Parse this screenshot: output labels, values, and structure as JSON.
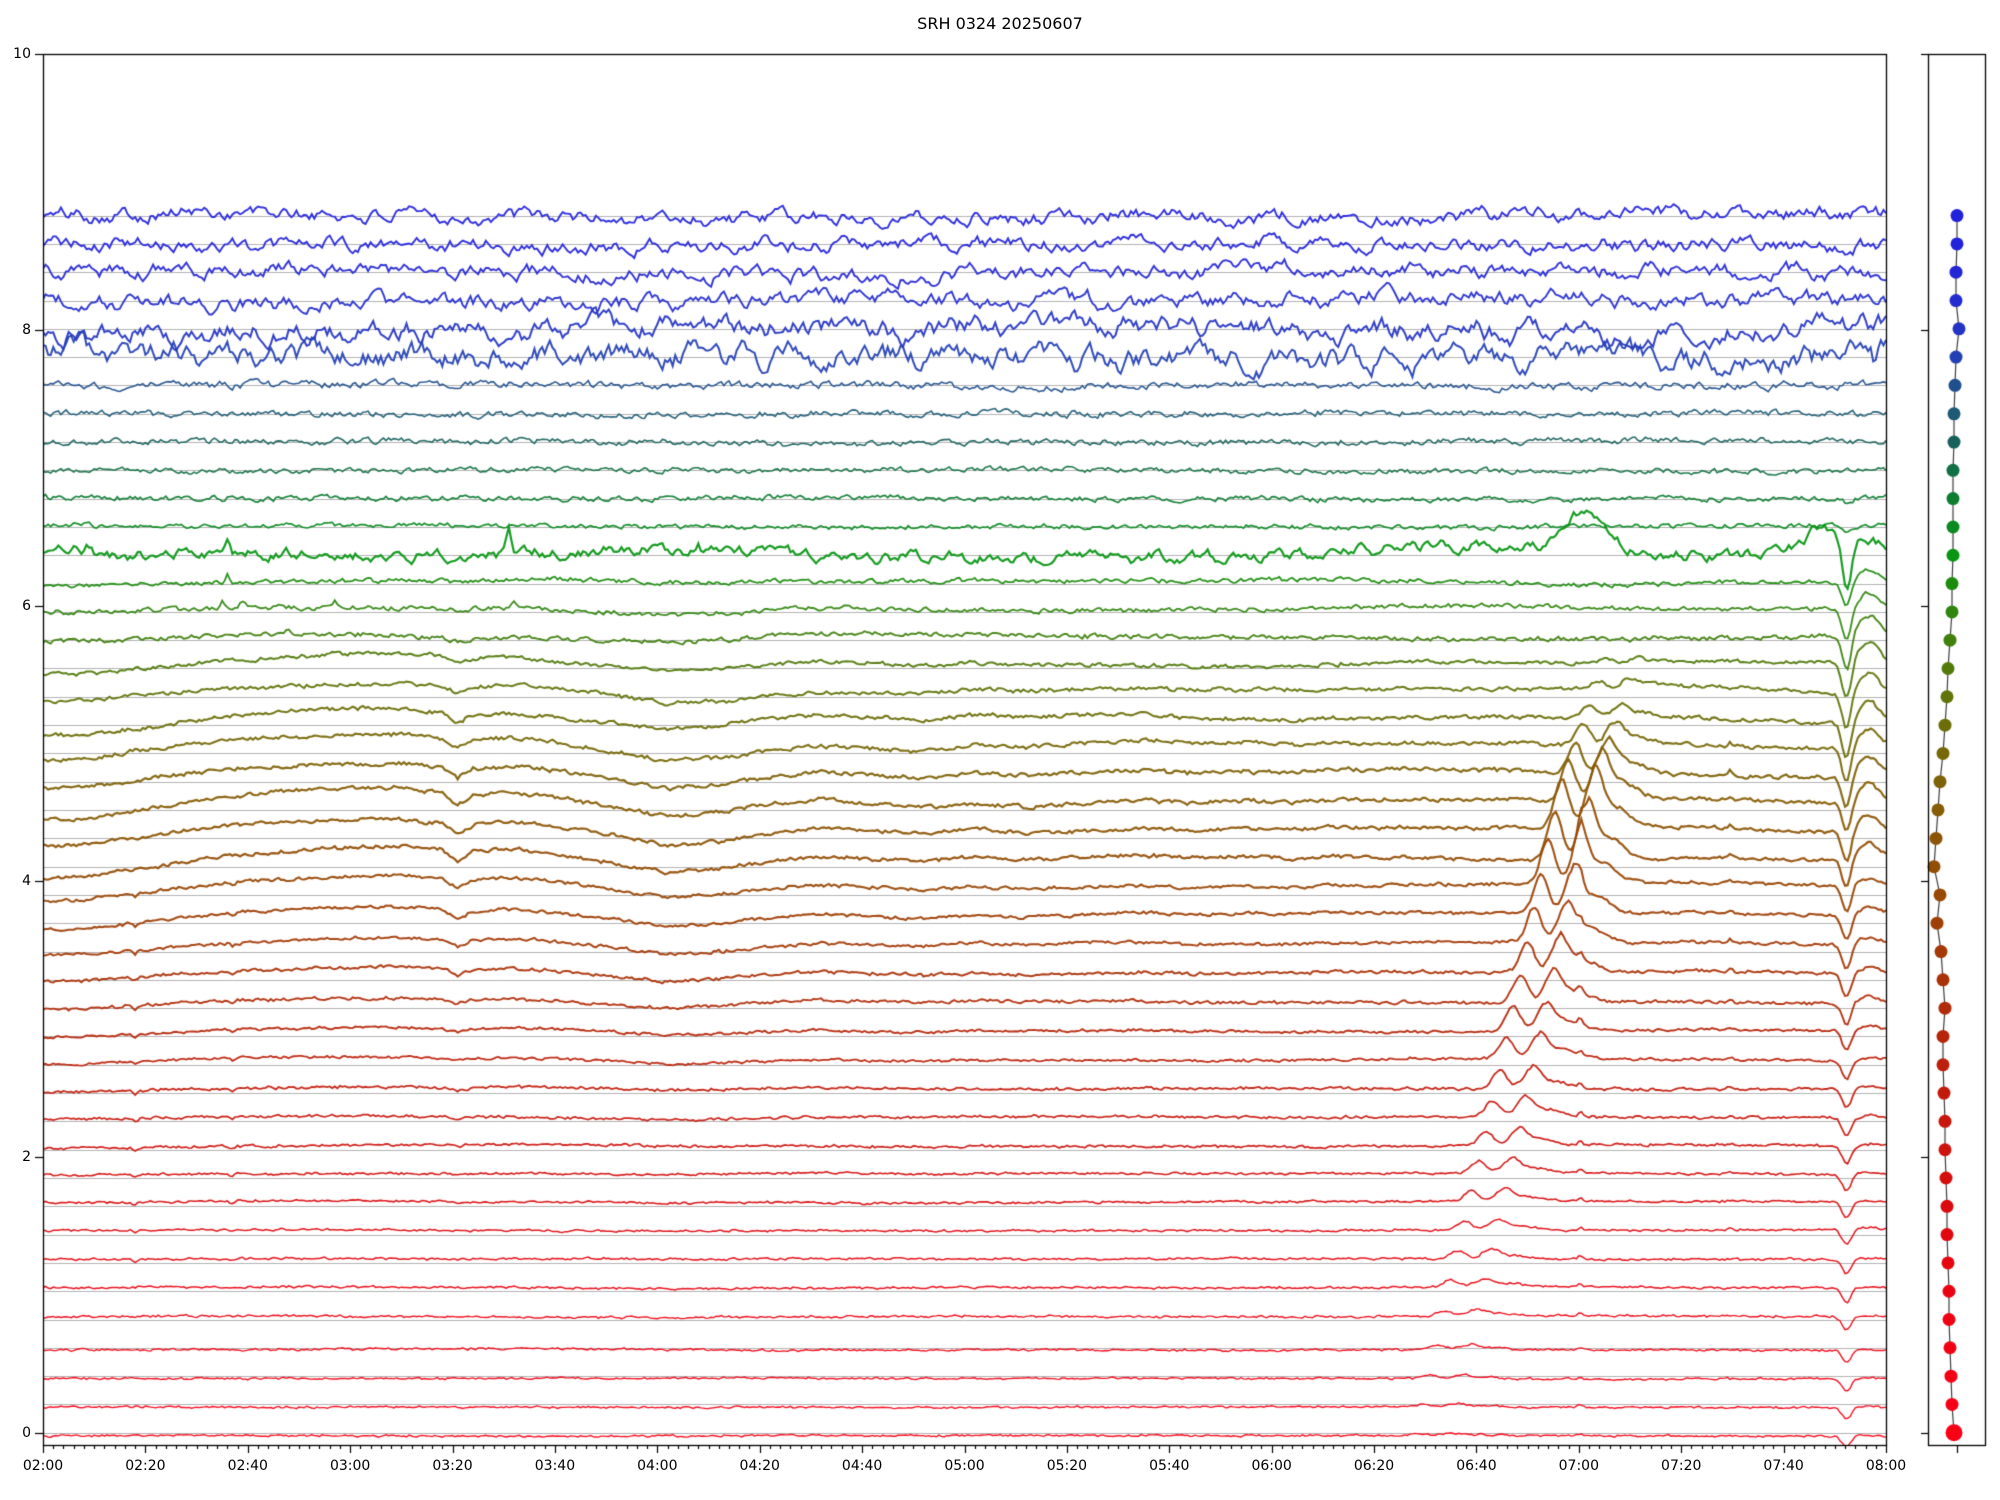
{
  "title": "SRH 0324 20250607",
  "colors": {
    "background": "#ffffff",
    "axis": "#000000",
    "grid": "#b3b3b3",
    "panel_line": "#404040"
  },
  "axes": {
    "x_major_labels": [
      "02:00",
      "02:20",
      "02:40",
      "03:00",
      "03:20",
      "03:40",
      "04:00",
      "04:20",
      "04:40",
      "05:00",
      "05:20",
      "05:40",
      "06:00",
      "06:20",
      "06:40",
      "07:00",
      "07:20",
      "07:40",
      "08:00"
    ],
    "x_major_step_min": 20,
    "x_minor_step_min": 2,
    "y_tick_labels": [
      "0",
      "2",
      "4",
      "6",
      "8",
      "10"
    ],
    "y_tick_values": [
      0,
      2,
      4,
      6,
      8,
      10
    ],
    "x_range_min": [
      0,
      360
    ],
    "y_range": [
      0,
      10
    ]
  },
  "chart_data": {
    "type": "line",
    "n_channels": 44,
    "x_axis": "time UT from 02:00 to 08:00, major ticks every 20 min, minor every 2 min",
    "y_axis": "stacked channel offsets, 0 to 10",
    "baseline_step": 0.2053,
    "baselines": [
      8.828,
      8.623,
      8.418,
      8.212,
      8.007,
      7.802,
      7.597,
      7.391,
      7.186,
      6.981,
      6.776,
      6.57,
      6.365,
      6.16,
      5.954,
      5.749,
      5.544,
      5.339,
      5.133,
      4.928,
      4.723,
      4.518,
      4.312,
      4.107,
      3.902,
      3.697,
      3.491,
      3.286,
      3.081,
      2.876,
      2.67,
      2.465,
      2.26,
      2.054,
      1.849,
      1.644,
      1.439,
      1.233,
      1.028,
      0.823,
      0.618,
      0.412,
      0.207,
      0.002
    ],
    "colors": [
      "#2222dd",
      "#2222db",
      "#2326d4",
      "#232cce",
      "#2334c4",
      "#2240b4",
      "#1f4f8c",
      "#1d5a74",
      "#18615b",
      "#127044",
      "#0d7d31",
      "#0a8a20",
      "#089613",
      "#1d8c0e",
      "#30850e",
      "#41800d",
      "#527a0b",
      "#60740a",
      "#6c6e09",
      "#766808",
      "#7e6207",
      "#865c06",
      "#8c5505",
      "#924e05",
      "#984705",
      "#9e4005",
      "#a43906",
      "#aa3207",
      "#b02b08",
      "#b62509",
      "#bc200a",
      "#c21b0b",
      "#c8160c",
      "#ce120d",
      "#d40e0d",
      "#da0b0e",
      "#e0080f",
      "#e50610",
      "#e90411",
      "#ed0312",
      "#f10213",
      "#f40114",
      "#f70015",
      "#fa0016"
    ],
    "noise_amp": [
      0.032,
      0.032,
      0.034,
      0.036,
      0.052,
      0.06,
      0.016,
      0.013,
      0.012,
      0.011,
      0.011,
      0.009,
      0.026,
      0.009,
      0.009,
      0.009,
      0.008,
      0.008,
      0.008,
      0.008,
      0.008,
      0.008,
      0.007,
      0.007,
      0.007,
      0.006,
      0.006,
      0.006,
      0.006,
      0.005,
      0.005,
      0.005,
      0.005,
      0.005,
      0.004,
      0.004,
      0.004,
      0.004,
      0.004,
      0.004,
      0.004,
      0.0035,
      0.0035,
      0.0035
    ],
    "noise_rho": [
      0.75,
      0.75,
      0.75,
      0.75,
      0.8,
      0.8,
      0.6,
      0.55,
      0.55,
      0.55,
      0.55,
      0.5,
      0.72,
      0.5,
      0.5,
      0.5,
      0.5,
      0.5,
      0.5,
      0.5,
      0.45,
      0.45,
      0.45,
      0.45,
      0.45,
      0.45,
      0.4,
      0.4,
      0.4,
      0.4,
      0.4,
      0.4,
      0.4,
      0.4,
      0.4,
      0.4,
      0.4,
      0.4,
      0.4,
      0.4,
      0.4,
      0.4,
      0.4,
      0.4
    ],
    "slow_amp": [
      0.012,
      0.012,
      0.013,
      0.014,
      0.02,
      0.022,
      0.008,
      0.007,
      0.007,
      0.006,
      0.006,
      0.005,
      0.02,
      0.01,
      0.012,
      0.013,
      0.014,
      0.014,
      0.013,
      0.012,
      0.011,
      0.01,
      0.009,
      0.009,
      0.008,
      0.007,
      0.006,
      0.006,
      0.005,
      0.005,
      0.004,
      0.004,
      0.004,
      0.004,
      0.003,
      0.003,
      0.003,
      0.003,
      0.003,
      0.003,
      0.003,
      0.002,
      0.002,
      0.002
    ],
    "drift_amp": [
      0,
      0,
      0,
      0,
      0,
      0,
      0,
      0,
      0,
      0,
      0,
      0,
      0,
      0.02,
      0.035,
      0.05,
      0.07,
      0.09,
      0.11,
      0.125,
      0.135,
      0.14,
      0.135,
      0.13,
      0.115,
      0.1,
      0.085,
      0.07,
      0.055,
      0.045,
      0.035,
      0.027,
      0.02,
      0.015,
      0.011,
      0.008,
      0.006,
      0.005,
      0.004,
      0.003,
      0.002,
      0.002,
      0.001,
      0.001
    ],
    "drift_shape": [
      [
        0,
        -0.58
      ],
      [
        8,
        -0.5
      ],
      [
        20,
        0
      ],
      [
        35,
        0.58
      ],
      [
        55,
        0.92
      ],
      [
        70,
        1.0
      ],
      [
        78,
        0.75
      ],
      [
        81,
        0.17
      ],
      [
        84,
        0.67
      ],
      [
        92,
        0.83
      ],
      [
        100,
        0.58
      ],
      [
        112,
        0.08
      ],
      [
        122,
        -0.42
      ],
      [
        132,
        -0.17
      ],
      [
        142,
        0.25
      ],
      [
        152,
        0.5
      ],
      [
        162,
        0.33
      ],
      [
        172,
        0.17
      ],
      [
        182,
        0.42
      ],
      [
        192,
        0.25
      ],
      [
        205,
        0.42
      ],
      [
        215,
        0.5
      ],
      [
        225,
        0.33
      ],
      [
        235,
        0.42
      ],
      [
        245,
        0.33
      ],
      [
        252,
        0.5
      ],
      [
        258,
        0.42
      ],
      [
        268,
        0.5
      ],
      [
        278,
        0.42
      ],
      [
        288,
        0.47
      ],
      [
        295,
        0.37
      ],
      [
        302,
        0.33
      ],
      [
        312,
        0.37
      ],
      [
        322,
        0.47
      ],
      [
        332,
        0.42
      ],
      [
        342,
        0.33
      ],
      [
        350,
        0.3
      ],
      [
        356,
        0.37
      ],
      [
        360,
        0.42
      ]
    ],
    "burst": {
      "t_ref_min": 298,
      "ch_ref": 22,
      "time_drift_min_per_ch": 1.35,
      "peak_sep_min": 6.3,
      "sigma1": 2.0,
      "sigma2": 2.3,
      "amp": [
        0,
        0,
        0,
        0,
        0,
        0,
        0,
        0,
        0,
        0,
        0,
        0,
        0,
        0,
        0,
        0,
        0.03,
        0.06,
        0.1,
        0.16,
        0.24,
        0.32,
        0.4,
        0.4,
        0.36,
        0.32,
        0.28,
        0.25,
        0.22,
        0.19,
        0.17,
        0.15,
        0.13,
        0.115,
        0.1,
        0.085,
        0.075,
        0.065,
        0.055,
        0.045,
        0.035,
        0.028,
        0.022,
        0.016
      ]
    },
    "calibration_dip": {
      "minute": 352.3,
      "sigma": 1.25,
      "amp": [
        0,
        0,
        0,
        0,
        0,
        0,
        0,
        0,
        0,
        0,
        0.03,
        0.04,
        0.3,
        0.18,
        0.22,
        0.26,
        0.27,
        0.27,
        0.26,
        0.25,
        0.24,
        0.23,
        0.22,
        0.21,
        0.2,
        0.19,
        0.18,
        0.17,
        0.16,
        0.15,
        0.14,
        0.14,
        0.13,
        0.13,
        0.12,
        0.12,
        0.11,
        0.11,
        0.1,
        0.1,
        0.09,
        0.09,
        0.085,
        0.08
      ],
      "overshoot": [
        0,
        0,
        0,
        0,
        0,
        0,
        0,
        0,
        0,
        0,
        0,
        0,
        0.35,
        0.55,
        0.55,
        0.55,
        0.55,
        0.55,
        0.55,
        0.55,
        0.55,
        0.55,
        0.55,
        0.55,
        0.25,
        0.25,
        0.25,
        0.25,
        0.25,
        0.25,
        0.08,
        0.08,
        0.08,
        0.08,
        0.08,
        0.08,
        0.08,
        0.08,
        0.08,
        0.08,
        0.08,
        0.08,
        0.08,
        0.08
      ]
    },
    "mini_spikes": [
      {
        "minute": 300.3,
        "ch_from": 24,
        "ch_to": 44,
        "amp": 0.055
      },
      {
        "minute": 329.5,
        "ch_from": 20,
        "ch_to": 37,
        "amp": 0.032
      }
    ],
    "spikes": {
      "6": [
        [
          358,
          -0.09
        ]
      ],
      "12": [
        [
          6,
          0.025
        ],
        [
          9,
          0.02
        ]
      ],
      "13": [
        [
          3,
          0.05
        ],
        [
          6,
          0.06
        ],
        [
          9,
          0.05
        ],
        [
          28,
          0.06
        ],
        [
          36,
          0.07
        ],
        [
          77,
          0.05
        ],
        [
          91,
          0.13
        ],
        [
          128,
          0.06
        ]
      ],
      "14": [
        [
          36,
          0.06
        ]
      ],
      "15": [
        [
          35,
          0.05
        ],
        [
          39,
          0.05
        ],
        [
          57,
          0.04
        ],
        [
          92,
          0.05
        ]
      ],
      "16": [
        [
          48,
          0.04
        ]
      ],
      "25": [
        [
          18,
          -0.025
        ],
        [
          37,
          -0.02
        ]
      ],
      "26": [
        [
          18,
          -0.025
        ],
        [
          37,
          -0.02
        ]
      ],
      "27": [
        [
          18,
          -0.025
        ],
        [
          37,
          -0.02
        ]
      ],
      "28": [
        [
          18,
          -0.025
        ],
        [
          37,
          -0.02
        ]
      ],
      "29": [
        [
          18,
          -0.025
        ],
        [
          37,
          -0.02
        ]
      ],
      "30": [
        [
          18,
          -0.025
        ],
        [
          37,
          -0.02
        ]
      ],
      "31": [
        [
          18,
          -0.025
        ],
        [
          37,
          -0.02
        ]
      ],
      "32": [
        [
          18,
          -0.022
        ],
        [
          37,
          -0.018
        ]
      ],
      "33": [
        [
          18,
          -0.022
        ],
        [
          37,
          -0.018
        ]
      ],
      "34": [
        [
          18,
          -0.02
        ],
        [
          37,
          -0.016
        ]
      ],
      "35": [
        [
          18,
          -0.02
        ],
        [
          37,
          -0.016
        ]
      ],
      "36": [
        [
          18,
          -0.018
        ],
        [
          37,
          -0.014
        ]
      ],
      "37": [
        [
          18,
          -0.016
        ],
        [
          37,
          -0.012
        ]
      ],
      "38": [
        [
          18,
          -0.014
        ],
        [
          37,
          -0.012
        ]
      ]
    },
    "green_channel_13": {
      "humps": [
        [
          301,
          0.25,
          5
        ],
        [
          347.5,
          0.2,
          4
        ]
      ],
      "trend_amp": 0.09,
      "trend_rise": [
        230,
        300
      ],
      "trend_fall": [
        306,
        322
      ]
    },
    "mean_offset": [
      0,
      0,
      0,
      0,
      0,
      0,
      0,
      0,
      0,
      0,
      0,
      0.005,
      0,
      0.005,
      0.005,
      0.005,
      0.01,
      0.01,
      0.01,
      0.01,
      0.01,
      0.01,
      0.01,
      0.01,
      0.022,
      0.022,
      0.022,
      0.022,
      0.022,
      0.022,
      0.022,
      0.022,
      0.022,
      0.022,
      0.028,
      0.028,
      0.028,
      0.028,
      0.025,
      0.02,
      -0.015,
      -0.018,
      -0.02,
      -0.022
    ],
    "line_width": [
      1.9,
      1.9,
      1.9,
      1.9,
      2.0,
      2.0,
      1.6,
      1.6,
      1.6,
      1.6,
      1.7,
      1.7,
      2.2,
      1.8,
      1.8,
      1.9,
      2.0,
      2.0,
      2.1,
      2.1,
      2.2,
      2.2,
      2.2,
      2.2,
      2.1,
      2.1,
      2.0,
      2.0,
      1.9,
      1.9,
      1.8,
      1.8,
      1.7,
      1.7,
      1.6,
      1.6,
      1.5,
      1.5,
      1.5,
      1.4,
      1.4,
      1.4,
      1.4,
      1.4
    ]
  },
  "panel": {
    "dot_x": [
      1957,
      1957,
      1956,
      1956,
      1959,
      1956,
      1955,
      1954,
      1954,
      1953,
      1953,
      1953,
      1953,
      1952,
      1952,
      1950,
      1948,
      1947,
      1945,
      1943,
      1940,
      1938,
      1936,
      1934,
      1940,
      1937,
      1941,
      1943,
      1945,
      1943,
      1943,
      1944,
      1945,
      1945,
      1946,
      1947,
      1947,
      1948,
      1949,
      1949,
      1950,
      1951,
      1952,
      1954
    ],
    "dot_radius": 6.5,
    "last_dot_radius": 8.5
  }
}
